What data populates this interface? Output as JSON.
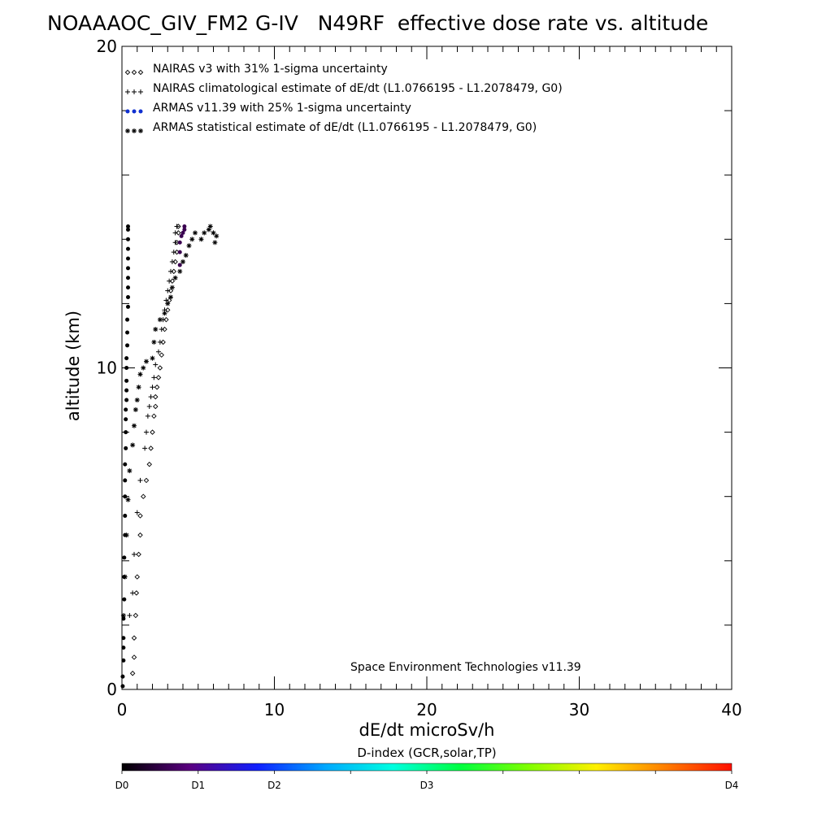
{
  "chart_data": {
    "type": "scatter",
    "title": "NOAAAOC_GIV_FM2 G-IV   N49RF  effective dose rate vs. altitude",
    "xlabel": "dE/dt microSv/h",
    "ylabel": "altitude (km)",
    "xlim": [
      0,
      40
    ],
    "ylim": [
      0,
      20
    ],
    "x_ticks": [
      0,
      10,
      20,
      30,
      40
    ],
    "y_ticks": [
      0,
      10,
      20
    ],
    "x_minor_step": 1,
    "y_minor_step": 2,
    "grid": false,
    "legend_position": "top-left",
    "credit": "Space Environment Technologies v11.39",
    "legend": [
      {
        "marker": "diamond",
        "symbol": "◇◇◇",
        "label": "NAIRAS v3 with 31% 1-sigma uncertainty",
        "color": "#000000"
      },
      {
        "marker": "plus",
        "symbol": "+++",
        "label": "NAIRAS climatological estimate of dE/dt (L1.0766195 - L1.2078479, G0)",
        "color": "#000000"
      },
      {
        "marker": "dot",
        "symbol": "●●●",
        "label": "ARMAS v11.39 with 25% 1-sigma uncertainty",
        "color": "#1030d0"
      },
      {
        "marker": "asterisk",
        "symbol": "***",
        "label": "ARMAS statistical estimate of dE/dt (L1.0766195 - L1.2078479, G0)",
        "color": "#000000"
      }
    ],
    "series": [
      {
        "name": "NAIRAS v3 with 31% 1-sigma uncertainty",
        "marker": "diamond",
        "points": [
          [
            0.7,
            0.5
          ],
          [
            0.8,
            1.0
          ],
          [
            0.8,
            1.6
          ],
          [
            0.9,
            2.3
          ],
          [
            0.95,
            3.0
          ],
          [
            1.0,
            3.5
          ],
          [
            1.1,
            4.2
          ],
          [
            1.2,
            4.8
          ],
          [
            1.2,
            5.4
          ],
          [
            1.4,
            6.0
          ],
          [
            1.6,
            6.5
          ],
          [
            1.8,
            7.0
          ],
          [
            1.9,
            7.5
          ],
          [
            2.0,
            8.0
          ],
          [
            2.1,
            8.5
          ],
          [
            2.2,
            8.8
          ],
          [
            2.2,
            9.1
          ],
          [
            2.3,
            9.4
          ],
          [
            2.4,
            9.7
          ],
          [
            2.5,
            10.0
          ],
          [
            2.6,
            10.4
          ],
          [
            2.7,
            10.8
          ],
          [
            2.8,
            11.2
          ],
          [
            2.9,
            11.5
          ],
          [
            3.0,
            11.8
          ],
          [
            3.1,
            12.1
          ],
          [
            3.2,
            12.4
          ],
          [
            3.3,
            12.7
          ],
          [
            3.4,
            13.0
          ],
          [
            3.5,
            13.3
          ],
          [
            3.6,
            13.6
          ],
          [
            3.6,
            13.9
          ],
          [
            3.7,
            14.2
          ],
          [
            3.7,
            14.4
          ]
        ]
      },
      {
        "name": "NAIRAS climatological estimate of dE/dt (L1.0766195 - L1.2078479, G0)",
        "marker": "plus",
        "points": [
          [
            0.5,
            2.3
          ],
          [
            0.7,
            3.0
          ],
          [
            0.8,
            4.2
          ],
          [
            1.0,
            5.5
          ],
          [
            1.2,
            6.5
          ],
          [
            1.5,
            7.5
          ],
          [
            1.6,
            8.0
          ],
          [
            1.7,
            8.5
          ],
          [
            1.8,
            8.8
          ],
          [
            1.9,
            9.1
          ],
          [
            2.0,
            9.4
          ],
          [
            2.1,
            9.7
          ],
          [
            2.2,
            10.1
          ],
          [
            2.4,
            10.5
          ],
          [
            2.5,
            10.8
          ],
          [
            2.6,
            11.2
          ],
          [
            2.7,
            11.5
          ],
          [
            2.8,
            11.8
          ],
          [
            2.9,
            12.1
          ],
          [
            3.0,
            12.4
          ],
          [
            3.1,
            12.7
          ],
          [
            3.2,
            13.0
          ],
          [
            3.3,
            13.3
          ],
          [
            3.4,
            13.6
          ],
          [
            3.5,
            13.9
          ],
          [
            3.5,
            14.2
          ],
          [
            3.6,
            14.4
          ]
        ]
      },
      {
        "name": "ARMAS v11.39 with 25% 1-sigma uncertainty",
        "marker": "dot",
        "points": [
          [
            0.05,
            0.1
          ],
          [
            0.05,
            0.4
          ],
          [
            0.1,
            0.9
          ],
          [
            0.1,
            1.3
          ],
          [
            0.1,
            1.6
          ],
          [
            0.1,
            2.2
          ],
          [
            0.15,
            2.8
          ],
          [
            0.15,
            3.5
          ],
          [
            0.15,
            4.1
          ],
          [
            0.2,
            4.8
          ],
          [
            0.2,
            5.4
          ],
          [
            0.2,
            6.0
          ],
          [
            0.2,
            6.5
          ],
          [
            0.2,
            7.0
          ],
          [
            0.25,
            7.5
          ],
          [
            0.25,
            8.0
          ],
          [
            0.25,
            8.4
          ],
          [
            0.25,
            8.7
          ],
          [
            0.3,
            9.0
          ],
          [
            0.3,
            9.3
          ],
          [
            0.3,
            9.6
          ],
          [
            0.3,
            10.0
          ],
          [
            0.3,
            10.3
          ],
          [
            0.35,
            10.7
          ],
          [
            0.35,
            11.1
          ],
          [
            0.35,
            11.5
          ],
          [
            0.4,
            11.9
          ],
          [
            0.4,
            12.2
          ],
          [
            0.4,
            12.5
          ],
          [
            0.4,
            12.8
          ],
          [
            0.4,
            13.1
          ],
          [
            0.4,
            13.4
          ],
          [
            0.4,
            13.7
          ],
          [
            0.4,
            14.0
          ],
          [
            0.4,
            14.3
          ],
          [
            0.4,
            14.4
          ],
          [
            3.8,
            13.2
          ],
          [
            3.8,
            13.6
          ],
          [
            3.8,
            13.9
          ],
          [
            3.9,
            14.1
          ],
          [
            4.0,
            14.2
          ],
          [
            4.1,
            14.3
          ],
          [
            4.1,
            14.4
          ]
        ]
      },
      {
        "name": "ARMAS statistical estimate of dE/dt (L1.0766195 - L1.2078479, G0)",
        "marker": "asterisk",
        "points": [
          [
            0.1,
            2.3
          ],
          [
            0.2,
            3.5
          ],
          [
            0.3,
            4.8
          ],
          [
            0.4,
            5.9
          ],
          [
            0.5,
            6.8
          ],
          [
            0.7,
            7.6
          ],
          [
            0.8,
            8.2
          ],
          [
            0.9,
            8.7
          ],
          [
            1.0,
            9.0
          ],
          [
            1.1,
            9.4
          ],
          [
            1.2,
            9.8
          ],
          [
            1.4,
            10.0
          ],
          [
            1.6,
            10.2
          ],
          [
            2.0,
            10.3
          ],
          [
            2.1,
            10.8
          ],
          [
            2.2,
            11.2
          ],
          [
            2.5,
            11.5
          ],
          [
            2.8,
            11.7
          ],
          [
            3.0,
            12.0
          ],
          [
            3.2,
            12.2
          ],
          [
            3.3,
            12.5
          ],
          [
            3.5,
            12.8
          ],
          [
            3.8,
            13.0
          ],
          [
            4.0,
            13.3
          ],
          [
            4.2,
            13.5
          ],
          [
            4.4,
            13.8
          ],
          [
            4.6,
            14.0
          ],
          [
            4.8,
            14.2
          ],
          [
            5.2,
            14.0
          ],
          [
            5.4,
            14.2
          ],
          [
            5.7,
            14.3
          ],
          [
            5.8,
            14.4
          ],
          [
            6.0,
            14.2
          ],
          [
            6.1,
            13.9
          ],
          [
            6.2,
            14.1
          ]
        ]
      }
    ],
    "colorbar": {
      "title": "D-index (GCR,solar,TP)",
      "labels": [
        "D0",
        "D1",
        "D2",
        "D3",
        "D4"
      ],
      "label_positions": [
        0,
        0.125,
        0.25,
        0.5,
        1.0
      ],
      "stops": [
        "#000000",
        "#5a0080",
        "#1020ff",
        "#00a8ff",
        "#00ffe0",
        "#00ff40",
        "#80ff00",
        "#fff000",
        "#ff8000",
        "#ff1000"
      ]
    }
  }
}
